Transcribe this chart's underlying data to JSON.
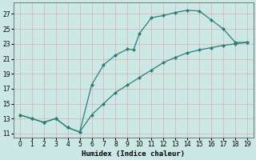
{
  "xlabel": "Humidex (Indice chaleur)",
  "ylabel": "",
  "bg_color": "#cce8e4",
  "grid_color": "#e8c8c8",
  "line_color": "#2d7d78",
  "marker_color": "#2d7d78",
  "xlim": [
    -0.5,
    19.5
  ],
  "ylim": [
    10.5,
    28.5
  ],
  "xticks": [
    0,
    1,
    2,
    3,
    4,
    5,
    6,
    7,
    8,
    9,
    10,
    11,
    12,
    13,
    14,
    15,
    16,
    17,
    18,
    19
  ],
  "yticks": [
    11,
    13,
    15,
    17,
    19,
    21,
    23,
    25,
    27
  ],
  "upper_x": [
    0,
    1,
    2,
    3,
    4,
    5,
    6,
    7,
    8,
    9,
    9.5,
    10,
    11,
    12,
    13,
    14,
    15,
    16,
    17,
    18,
    19
  ],
  "upper_y": [
    13.5,
    13.0,
    12.5,
    13.0,
    11.8,
    11.2,
    17.5,
    20.2,
    21.5,
    22.3,
    22.2,
    24.4,
    26.5,
    26.8,
    27.2,
    27.5,
    27.4,
    26.2,
    25.0,
    23.2,
    23.2
  ],
  "lower_x": [
    0,
    1,
    2,
    3,
    4,
    5,
    6,
    7,
    8,
    9,
    10,
    11,
    12,
    13,
    14,
    15,
    16,
    17,
    18,
    19
  ],
  "lower_y": [
    13.5,
    13.0,
    12.5,
    13.0,
    11.8,
    11.2,
    13.5,
    15.0,
    16.5,
    17.5,
    18.5,
    19.5,
    20.5,
    21.2,
    21.8,
    22.2,
    22.5,
    22.8,
    23.0,
    23.2
  ]
}
